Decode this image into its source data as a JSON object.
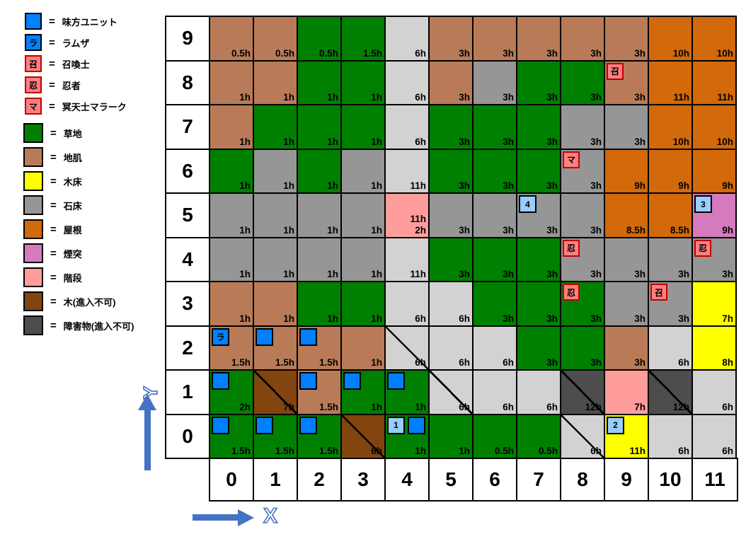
{
  "colors": {
    "arrow": "#4472C4",
    "ally_blue": "#0080FF",
    "numbered_blue": "#99CCFF",
    "enemy_salmon": "#FF8080",
    "grid_line": "#000000"
  },
  "legend": {
    "equals": "=",
    "units": [
      {
        "symbol": "",
        "label": "味方ユニット",
        "fill": "#0080FF",
        "kind": "ally"
      },
      {
        "symbol": "ラ",
        "label": "ラムザ",
        "fill": "#0080FF",
        "kind": "ramza"
      },
      {
        "symbol": "召",
        "label": "召喚士",
        "fill": "#FF8080",
        "kind": "enemy"
      },
      {
        "symbol": "忍",
        "label": "忍者",
        "fill": "#FF8080",
        "kind": "enemy"
      },
      {
        "symbol": "マ",
        "label": "冥天士マラーク",
        "fill": "#FF8080",
        "kind": "enemy"
      }
    ],
    "terrain": [
      {
        "label": "草地",
        "key": "grass",
        "fill": "#008000",
        "diagonal": false
      },
      {
        "label": "地肌",
        "key": "dirt",
        "fill": "#B97B57",
        "diagonal": false
      },
      {
        "label": "木床",
        "key": "wood",
        "fill": "#FFFF00",
        "diagonal": false
      },
      {
        "label": "石床",
        "key": "stone",
        "fill": "#969696",
        "diagonal": false
      },
      {
        "label": "屋根",
        "key": "roof",
        "fill": "#D2690A",
        "diagonal": false
      },
      {
        "label": "煙突",
        "key": "chimney",
        "fill": "#D67ABE",
        "diagonal": false
      },
      {
        "label": "階段",
        "key": "stairs",
        "fill": "#FF9D9D",
        "diagonal": false
      },
      {
        "label": "木(進入不可)",
        "key": "tree",
        "fill": "#82450F",
        "diagonal": true
      },
      {
        "label": "障害物(進入不可)",
        "key": "obstacle",
        "fill": "#4D4D4D",
        "diagonal": true
      }
    ]
  },
  "axes": {
    "x_label": "X",
    "y_label": "Y"
  },
  "grid": {
    "col_headers": [
      "0",
      "1",
      "2",
      "3",
      "4",
      "5",
      "6",
      "7",
      "8",
      "9",
      "10",
      "11"
    ],
    "terrain_colors": {
      "grass": "#008000",
      "dirt": "#B97B57",
      "wood": "#FFFF00",
      "stone": "#969696",
      "stone_light": "#D2D2D2",
      "roof": "#D2690A",
      "chimney": "#D67ABE",
      "stairs": "#FF9D9D",
      "tree": "#82450F",
      "obstacle": "#4D4D4D"
    },
    "rows": [
      {
        "y": "9",
        "cells": [
          {
            "t": "dirt",
            "h": "0.5h"
          },
          {
            "t": "dirt",
            "h": "0.5h"
          },
          {
            "t": "grass",
            "h": "0.5h"
          },
          {
            "t": "grass",
            "h": "1.5h"
          },
          {
            "t": "stone_light",
            "h": "6h"
          },
          {
            "t": "dirt",
            "h": "3h"
          },
          {
            "t": "dirt",
            "h": "3h"
          },
          {
            "t": "dirt",
            "h": "3h"
          },
          {
            "t": "dirt",
            "h": "3h"
          },
          {
            "t": "dirt",
            "h": "3h"
          },
          {
            "t": "roof",
            "h": "10h"
          },
          {
            "t": "roof",
            "h": "10h"
          }
        ]
      },
      {
        "y": "8",
        "cells": [
          {
            "t": "dirt",
            "h": "1h"
          },
          {
            "t": "dirt",
            "h": "1h"
          },
          {
            "t": "grass",
            "h": "1h"
          },
          {
            "t": "grass",
            "h": "1h"
          },
          {
            "t": "stone_light",
            "h": "6h"
          },
          {
            "t": "dirt",
            "h": "3h"
          },
          {
            "t": "stone",
            "h": "3h"
          },
          {
            "t": "grass",
            "h": "3h"
          },
          {
            "t": "grass",
            "h": "3h"
          },
          {
            "t": "dirt",
            "h": "3h",
            "units": [
              {
                "kind": "enemy",
                "text": "召"
              }
            ]
          },
          {
            "t": "roof",
            "h": "11h"
          },
          {
            "t": "roof",
            "h": "11h"
          }
        ]
      },
      {
        "y": "7",
        "cells": [
          {
            "t": "dirt",
            "h": "1h"
          },
          {
            "t": "grass",
            "h": "1h"
          },
          {
            "t": "grass",
            "h": "1h"
          },
          {
            "t": "grass",
            "h": "1h"
          },
          {
            "t": "stone_light",
            "h": "6h"
          },
          {
            "t": "grass",
            "h": "3h"
          },
          {
            "t": "grass",
            "h": "3h"
          },
          {
            "t": "grass",
            "h": "3h"
          },
          {
            "t": "stone",
            "h": "3h"
          },
          {
            "t": "stone",
            "h": "3h"
          },
          {
            "t": "roof",
            "h": "10h"
          },
          {
            "t": "roof",
            "h": "10h"
          }
        ]
      },
      {
        "y": "6",
        "cells": [
          {
            "t": "grass",
            "h": "1h"
          },
          {
            "t": "stone",
            "h": "1h"
          },
          {
            "t": "grass",
            "h": "1h"
          },
          {
            "t": "stone",
            "h": "1h"
          },
          {
            "t": "stone_light",
            "h": "11h"
          },
          {
            "t": "grass",
            "h": "3h"
          },
          {
            "t": "grass",
            "h": "3h"
          },
          {
            "t": "grass",
            "h": "3h"
          },
          {
            "t": "stone",
            "h": "3h",
            "units": [
              {
                "kind": "enemy",
                "text": "マ"
              }
            ]
          },
          {
            "t": "roof",
            "h": "9h"
          },
          {
            "t": "roof",
            "h": "9h"
          },
          {
            "t": "roof",
            "h": "9h"
          }
        ]
      },
      {
        "y": "5",
        "cells": [
          {
            "t": "stone",
            "h": "1h"
          },
          {
            "t": "stone",
            "h": "1h"
          },
          {
            "t": "stone",
            "h": "1h"
          },
          {
            "t": "stone",
            "h": "1h"
          },
          {
            "t": "stairs",
            "h": "11h",
            "h2": "2h"
          },
          {
            "t": "stone",
            "h": "3h"
          },
          {
            "t": "stone",
            "h": "3h"
          },
          {
            "t": "stone",
            "h": "3h",
            "units": [
              {
                "kind": "number",
                "text": "4"
              }
            ]
          },
          {
            "t": "stone",
            "h": "3h"
          },
          {
            "t": "roof",
            "h": "8.5h"
          },
          {
            "t": "roof",
            "h": "8.5h"
          },
          {
            "t": "chimney",
            "h": "9h",
            "units": [
              {
                "kind": "number",
                "text": "3"
              }
            ]
          }
        ]
      },
      {
        "y": "4",
        "cells": [
          {
            "t": "stone",
            "h": "1h"
          },
          {
            "t": "stone",
            "h": "1h"
          },
          {
            "t": "stone",
            "h": "1h"
          },
          {
            "t": "stone",
            "h": "1h"
          },
          {
            "t": "stone_light",
            "h": "11h"
          },
          {
            "t": "grass",
            "h": "3h"
          },
          {
            "t": "grass",
            "h": "3h"
          },
          {
            "t": "grass",
            "h": "3h"
          },
          {
            "t": "stone",
            "h": "3h",
            "units": [
              {
                "kind": "enemy",
                "text": "忍"
              }
            ]
          },
          {
            "t": "stone",
            "h": "3h"
          },
          {
            "t": "stone",
            "h": "3h"
          },
          {
            "t": "stone",
            "h": "3h",
            "units": [
              {
                "kind": "enemy",
                "text": "忍"
              }
            ]
          }
        ]
      },
      {
        "y": "3",
        "cells": [
          {
            "t": "dirt",
            "h": "1h"
          },
          {
            "t": "dirt",
            "h": "1h"
          },
          {
            "t": "grass",
            "h": "1h"
          },
          {
            "t": "grass",
            "h": "1h"
          },
          {
            "t": "stone_light",
            "h": "6h"
          },
          {
            "t": "stone_light",
            "h": "6h"
          },
          {
            "t": "grass",
            "h": "3h"
          },
          {
            "t": "grass",
            "h": "3h"
          },
          {
            "t": "grass",
            "h": "3h",
            "units": [
              {
                "kind": "enemy",
                "text": "忍"
              }
            ]
          },
          {
            "t": "stone",
            "h": "3h"
          },
          {
            "t": "stone",
            "h": "3h",
            "units": [
              {
                "kind": "enemy",
                "text": "召"
              }
            ]
          },
          {
            "t": "wood",
            "h": "7h"
          }
        ]
      },
      {
        "y": "2",
        "cells": [
          {
            "t": "dirt",
            "h": "1.5h",
            "units": [
              {
                "kind": "ramza",
                "text": "ラ"
              }
            ]
          },
          {
            "t": "dirt",
            "h": "1.5h",
            "units": [
              {
                "kind": "ally"
              }
            ]
          },
          {
            "t": "dirt",
            "h": "1.5h",
            "units": [
              {
                "kind": "ally"
              }
            ]
          },
          {
            "t": "dirt",
            "h": "1h"
          },
          {
            "t": "stone_light",
            "h": "6h",
            "diag": true
          },
          {
            "t": "stone_light",
            "h": "6h"
          },
          {
            "t": "stone_light",
            "h": "6h"
          },
          {
            "t": "grass",
            "h": "3h"
          },
          {
            "t": "grass",
            "h": "3h"
          },
          {
            "t": "dirt",
            "h": "3h"
          },
          {
            "t": "stone_light",
            "h": "6h"
          },
          {
            "t": "wood",
            "h": "8h"
          }
        ]
      },
      {
        "y": "1",
        "cells": [
          {
            "t": "grass",
            "h": "2h",
            "units": [
              {
                "kind": "ally"
              }
            ]
          },
          {
            "t": "tree",
            "h": "7h",
            "diag": true
          },
          {
            "t": "dirt",
            "h": "1.5h",
            "units": [
              {
                "kind": "ally"
              }
            ]
          },
          {
            "t": "grass",
            "h": "1h",
            "units": [
              {
                "kind": "ally"
              }
            ]
          },
          {
            "t": "grass",
            "h": "1h",
            "units": [
              {
                "kind": "ally"
              }
            ]
          },
          {
            "t": "stone_light",
            "h": "6h",
            "diag": true
          },
          {
            "t": "stone_light",
            "h": "6h"
          },
          {
            "t": "stone_light",
            "h": "6h"
          },
          {
            "t": "obstacle",
            "h": "12h",
            "diag": true
          },
          {
            "t": "stairs",
            "h": "7h"
          },
          {
            "t": "obstacle",
            "h": "12h",
            "diag": true
          },
          {
            "t": "stone_light",
            "h": "6h"
          }
        ]
      },
      {
        "y": "0",
        "cells": [
          {
            "t": "grass",
            "h": "1.5h",
            "units": [
              {
                "kind": "ally"
              }
            ]
          },
          {
            "t": "grass",
            "h": "1.5h",
            "units": [
              {
                "kind": "ally"
              }
            ]
          },
          {
            "t": "grass",
            "h": "1.5h",
            "units": [
              {
                "kind": "ally"
              }
            ]
          },
          {
            "t": "tree",
            "h": "6h",
            "diag": true
          },
          {
            "t": "grass",
            "h": "1h",
            "units": [
              {
                "kind": "number",
                "text": "1"
              },
              {
                "kind": "ally"
              }
            ]
          },
          {
            "t": "grass",
            "h": "1h"
          },
          {
            "t": "grass",
            "h": "0.5h"
          },
          {
            "t": "grass",
            "h": "0.5h"
          },
          {
            "t": "stone_light",
            "h": "6h",
            "diag": true
          },
          {
            "t": "wood",
            "h": "11h",
            "units": [
              {
                "kind": "number",
                "text": "2"
              }
            ]
          },
          {
            "t": "stone_light",
            "h": "6h"
          },
          {
            "t": "stone_light",
            "h": "6h"
          }
        ]
      }
    ]
  }
}
